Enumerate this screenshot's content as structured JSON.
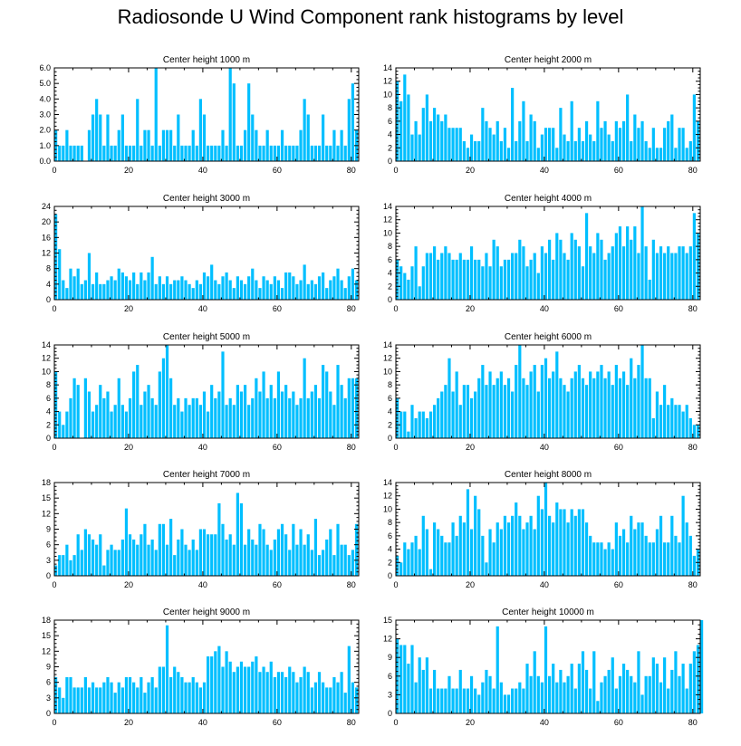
{
  "figure": {
    "title": "Radiosonde U Wind Component rank histograms by level"
  },
  "chart_data": [
    {
      "type": "bar",
      "title": "Center height 1000 m",
      "ylim": [
        0,
        6
      ],
      "yticks": [
        0,
        1,
        2,
        3,
        4,
        5,
        6
      ],
      "ytick_labels": [
        "0.0",
        "1.0",
        "2.0",
        "3.0",
        "4.0",
        "5.0",
        "6.0"
      ],
      "xticks": [
        0,
        20,
        40,
        60,
        80
      ],
      "xtick_labels": [
        "0",
        "20",
        "40",
        "60",
        "80"
      ],
      "xlim": [
        0,
        82
      ],
      "values": [
        2,
        1,
        1,
        2,
        1,
        1,
        1,
        1,
        0,
        2,
        3,
        4,
        3,
        1,
        3,
        1,
        1,
        2,
        3,
        1,
        1,
        1,
        4,
        1,
        2,
        2,
        1,
        6,
        1,
        2,
        2,
        2,
        1,
        3,
        1,
        1,
        1,
        2,
        1,
        4,
        3,
        1,
        1,
        1,
        1,
        2,
        1,
        6,
        5,
        1,
        1,
        2,
        5,
        3,
        2,
        1,
        1,
        2,
        1,
        1,
        1,
        2,
        1,
        1,
        1,
        1,
        2,
        4,
        3,
        1,
        1,
        1,
        3,
        1,
        1,
        2,
        1,
        2,
        1,
        4,
        5,
        2
      ]
    },
    {
      "type": "bar",
      "title": "Center height 2000 m",
      "ylim": [
        0,
        14
      ],
      "yticks": [
        0,
        2,
        4,
        6,
        8,
        10,
        12,
        14
      ],
      "ytick_labels": [
        "0",
        "2",
        "4",
        "6",
        "8",
        "10",
        "12",
        "14"
      ],
      "xticks": [
        0,
        20,
        40,
        60,
        80
      ],
      "xtick_labels": [
        "0",
        "20",
        "40",
        "60",
        "80"
      ],
      "xlim": [
        0,
        82
      ],
      "values": [
        12,
        9,
        13,
        10,
        4,
        6,
        4,
        8,
        10,
        6,
        8,
        7,
        6,
        7,
        5,
        5,
        5,
        5,
        3,
        2,
        4,
        3,
        3,
        8,
        6,
        5,
        4,
        6,
        3,
        5,
        2,
        11,
        3,
        6,
        9,
        3,
        7,
        6,
        2,
        4,
        5,
        5,
        5,
        2,
        8,
        4,
        3,
        9,
        3,
        5,
        3,
        6,
        4,
        3,
        9,
        5,
        6,
        4,
        3,
        6,
        5,
        6,
        10,
        3,
        7,
        5,
        6,
        3,
        2,
        5,
        2,
        2,
        5,
        6,
        7,
        2,
        5,
        5,
        2,
        3,
        10,
        6
      ]
    },
    {
      "type": "bar",
      "title": "Center height 3000 m",
      "ylim": [
        0,
        24
      ],
      "yticks": [
        0,
        4,
        8,
        12,
        16,
        20,
        24
      ],
      "ytick_labels": [
        "0",
        "4",
        "8",
        "12",
        "16",
        "20",
        "24"
      ],
      "xticks": [
        0,
        20,
        40,
        60,
        80
      ],
      "xtick_labels": [
        "0",
        "20",
        "40",
        "60",
        "80"
      ],
      "xlim": [
        0,
        82
      ],
      "values": [
        22,
        13,
        5,
        3,
        8,
        6,
        8,
        4,
        5,
        12,
        4,
        7,
        4,
        4,
        5,
        6,
        5,
        8,
        7,
        6,
        5,
        7,
        4,
        7,
        5,
        7,
        11,
        4,
        6,
        4,
        6,
        4,
        5,
        5,
        6,
        5,
        4,
        3,
        5,
        4,
        7,
        6,
        9,
        5,
        4,
        6,
        7,
        5,
        3,
        6,
        5,
        4,
        6,
        8,
        5,
        3,
        6,
        5,
        4,
        6,
        5,
        3,
        7,
        7,
        6,
        4,
        5,
        9,
        4,
        5,
        4,
        6,
        7,
        3,
        5,
        6,
        8,
        5,
        3,
        6,
        8,
        5
      ]
    },
    {
      "type": "bar",
      "title": "Center height 4000 m",
      "ylim": [
        0,
        14
      ],
      "yticks": [
        0,
        2,
        4,
        6,
        8,
        10,
        12,
        14
      ],
      "ytick_labels": [
        "0",
        "2",
        "4",
        "6",
        "8",
        "10",
        "12",
        "14"
      ],
      "xticks": [
        0,
        20,
        40,
        60,
        80
      ],
      "xtick_labels": [
        "0",
        "20",
        "40",
        "60",
        "80"
      ],
      "xlim": [
        0,
        82
      ],
      "values": [
        6,
        5,
        4,
        3,
        5,
        8,
        2,
        5,
        7,
        7,
        8,
        6,
        7,
        8,
        7,
        6,
        6,
        7,
        6,
        6,
        8,
        6,
        6,
        5,
        7,
        5,
        9,
        8,
        5,
        6,
        6,
        7,
        7,
        9,
        8,
        5,
        6,
        7,
        4,
        8,
        7,
        9,
        6,
        10,
        9,
        7,
        6,
        10,
        9,
        8,
        5,
        13,
        8,
        7,
        10,
        9,
        6,
        7,
        8,
        10,
        11,
        8,
        11,
        9,
        11,
        7,
        14,
        8,
        3,
        9,
        7,
        8,
        7,
        8,
        7,
        7,
        8,
        8,
        7,
        8,
        13,
        10
      ]
    },
    {
      "type": "bar",
      "title": "Center height 5000 m",
      "ylim": [
        0,
        14
      ],
      "yticks": [
        0,
        2,
        4,
        6,
        8,
        10,
        12,
        14
      ],
      "ytick_labels": [
        "0",
        "2",
        "4",
        "6",
        "8",
        "10",
        "12",
        "14"
      ],
      "xticks": [
        0,
        20,
        40,
        60,
        80
      ],
      "xtick_labels": [
        "0",
        "20",
        "40",
        "60",
        "80"
      ],
      "xlim": [
        0,
        82
      ],
      "values": [
        10,
        4,
        2,
        4,
        6,
        9,
        8,
        0,
        9,
        7,
        4,
        5,
        8,
        6,
        7,
        4,
        5,
        9,
        5,
        4,
        6,
        10,
        11,
        5,
        7,
        8,
        6,
        5,
        10,
        12,
        14,
        9,
        5,
        6,
        4,
        6,
        5,
        6,
        6,
        5,
        7,
        4,
        8,
        6,
        7,
        13,
        5,
        6,
        5,
        8,
        7,
        8,
        5,
        6,
        9,
        7,
        10,
        6,
        8,
        6,
        10,
        7,
        8,
        6,
        7,
        5,
        6,
        12,
        6,
        7,
        8,
        6,
        11,
        10,
        7,
        5,
        11,
        8,
        6,
        9,
        9,
        9
      ]
    },
    {
      "type": "bar",
      "title": "Center height 6000 m",
      "ylim": [
        0,
        14
      ],
      "yticks": [
        0,
        2,
        4,
        6,
        8,
        10,
        12,
        14
      ],
      "ytick_labels": [
        "0",
        "2",
        "4",
        "6",
        "8",
        "10",
        "12",
        "14"
      ],
      "xticks": [
        0,
        20,
        40,
        60,
        80
      ],
      "xtick_labels": [
        "0",
        "20",
        "40",
        "60",
        "80"
      ],
      "xlim": [
        0,
        82
      ],
      "values": [
        6,
        4,
        4,
        1,
        5,
        3,
        4,
        4,
        3,
        4,
        5,
        6,
        7,
        8,
        12,
        7,
        10,
        5,
        8,
        8,
        6,
        7,
        9,
        11,
        8,
        10,
        8,
        9,
        10,
        8,
        9,
        7,
        11,
        14,
        9,
        8,
        10,
        11,
        7,
        11,
        12,
        9,
        10,
        13,
        9,
        8,
        7,
        9,
        10,
        11,
        9,
        8,
        10,
        9,
        10,
        11,
        9,
        10,
        8,
        11,
        9,
        10,
        8,
        12,
        9,
        11,
        14,
        9,
        9,
        3,
        7,
        5,
        8,
        5,
        6,
        5,
        5,
        4,
        5,
        3,
        2,
        2
      ]
    },
    {
      "type": "bar",
      "title": "Center height 7000 m",
      "ylim": [
        0,
        18
      ],
      "yticks": [
        0,
        3,
        6,
        9,
        12,
        15,
        18
      ],
      "ytick_labels": [
        "0",
        "3",
        "6",
        "9",
        "12",
        "15",
        "18"
      ],
      "xticks": [
        0,
        20,
        40,
        60,
        80
      ],
      "xtick_labels": [
        "0",
        "20",
        "40",
        "60",
        "80"
      ],
      "xlim": [
        0,
        82
      ],
      "values": [
        2,
        4,
        4,
        6,
        3,
        4,
        8,
        5,
        9,
        8,
        7,
        6,
        8,
        2,
        5,
        6,
        5,
        5,
        7,
        13,
        8,
        7,
        6,
        8,
        10,
        6,
        7,
        5,
        10,
        10,
        6,
        11,
        4,
        7,
        9,
        6,
        5,
        7,
        5,
        9,
        9,
        8,
        8,
        8,
        14,
        10,
        7,
        8,
        6,
        16,
        14,
        6,
        9,
        7,
        6,
        10,
        9,
        6,
        5,
        7,
        9,
        10,
        8,
        5,
        10,
        6,
        9,
        6,
        8,
        5,
        11,
        4,
        5,
        7,
        9,
        4,
        10,
        6,
        6,
        4,
        5,
        10
      ]
    },
    {
      "type": "bar",
      "title": "Center height 8000 m",
      "ylim": [
        0,
        14
      ],
      "yticks": [
        0,
        2,
        4,
        6,
        8,
        10,
        12,
        14
      ],
      "ytick_labels": [
        "0",
        "2",
        "4",
        "6",
        "8",
        "10",
        "12",
        "14"
      ],
      "xticks": [
        0,
        20,
        40,
        60,
        80
      ],
      "xtick_labels": [
        "0",
        "20",
        "40",
        "60",
        "80"
      ],
      "xlim": [
        0,
        82
      ],
      "values": [
        3,
        2,
        5,
        4,
        5,
        6,
        4,
        9,
        7,
        1,
        8,
        7,
        6,
        5,
        5,
        8,
        6,
        9,
        8,
        13,
        7,
        12,
        10,
        6,
        2,
        7,
        5,
        8,
        7,
        9,
        8,
        9,
        11,
        9,
        7,
        8,
        9,
        7,
        12,
        10,
        14,
        9,
        8,
        11,
        10,
        10,
        8,
        10,
        9,
        10,
        10,
        8,
        6,
        5,
        5,
        5,
        4,
        5,
        4,
        8,
        6,
        7,
        5,
        9,
        7,
        8,
        8,
        6,
        5,
        5,
        7,
        9,
        5,
        5,
        9,
        6,
        5,
        12,
        8,
        6,
        3,
        4
      ]
    },
    {
      "type": "bar",
      "title": "Center height 9000 m",
      "ylim": [
        0,
        18
      ],
      "yticks": [
        0,
        3,
        6,
        9,
        12,
        15,
        18
      ],
      "ytick_labels": [
        "0",
        "3",
        "6",
        "9",
        "12",
        "15",
        "18"
      ],
      "xticks": [
        0,
        20,
        40,
        60,
        80
      ],
      "xtick_labels": [
        "0",
        "20",
        "40",
        "60",
        "80"
      ],
      "xlim": [
        0,
        82
      ],
      "values": [
        7,
        5,
        3,
        7,
        7,
        5,
        5,
        5,
        7,
        5,
        6,
        5,
        5,
        6,
        7,
        6,
        4,
        6,
        5,
        7,
        7,
        6,
        5,
        7,
        4,
        6,
        7,
        5,
        9,
        9,
        17,
        7,
        9,
        8,
        7,
        6,
        6,
        7,
        6,
        5,
        6,
        11,
        11,
        12,
        13,
        9,
        12,
        10,
        8,
        9,
        10,
        9,
        9,
        10,
        11,
        8,
        9,
        8,
        10,
        7,
        8,
        8,
        7,
        9,
        8,
        6,
        7,
        9,
        8,
        5,
        6,
        8,
        6,
        5,
        5,
        7,
        6,
        8,
        4,
        13,
        6,
        5
      ]
    },
    {
      "type": "bar",
      "title": "Center height 10000 m",
      "ylim": [
        0,
        15
      ],
      "yticks": [
        0,
        3,
        6,
        9,
        12,
        15
      ],
      "ytick_labels": [
        "0",
        "3",
        "6",
        "9",
        "12",
        "15"
      ],
      "xticks": [
        0,
        20,
        40,
        60,
        80
      ],
      "xtick_labels": [
        "0",
        "20",
        "40",
        "60",
        "80"
      ],
      "xlim": [
        0,
        82
      ],
      "values": [
        12,
        11,
        11,
        8,
        11,
        5,
        9,
        7,
        9,
        4,
        7,
        4,
        4,
        4,
        6,
        4,
        4,
        7,
        4,
        4,
        6,
        4,
        3,
        5,
        7,
        6,
        4,
        14,
        5,
        3,
        3,
        4,
        4,
        5,
        4,
        8,
        6,
        10,
        6,
        5,
        14,
        6,
        8,
        5,
        7,
        5,
        6,
        8,
        4,
        8,
        10,
        7,
        4,
        10,
        2,
        5,
        6,
        7,
        9,
        4,
        6,
        8,
        7,
        6,
        5,
        10,
        3,
        6,
        6,
        9,
        8,
        5,
        9,
        4,
        7,
        10,
        6,
        8,
        4,
        8,
        10,
        11,
        15
      ]
    }
  ]
}
